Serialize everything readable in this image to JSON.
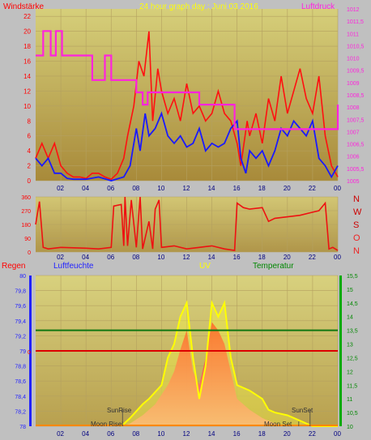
{
  "chart_data": [
    {
      "type": "line",
      "title": "24 hour graph day : Juni 03 2016",
      "left_label": "Windstärke",
      "right_label": "Luftdruck",
      "colors": {
        "wind": "#ff1010",
        "gust": "#1a1aff",
        "pressure": "#ff22dd",
        "left_axis": "#ff0000",
        "right_axis": "#ff22dd",
        "title": "#ffff00"
      },
      "x_ticks": [
        "02",
        "04",
        "06",
        "08",
        "10",
        "12",
        "14",
        "16",
        "18",
        "20",
        "22",
        "00"
      ],
      "y_left_ticks": [
        "0",
        "2",
        "4",
        "6",
        "8",
        "10",
        "12",
        "14",
        "16",
        "18",
        "20",
        "22"
      ],
      "y_left_range": [
        0,
        23
      ],
      "y_right_ticks": [
        "1005",
        "1005,5",
        "1006",
        "1006,5",
        "1007",
        "1007,5",
        "1008",
        "1008,5",
        "1009",
        "1009,5",
        "1010",
        "1010,5",
        "1011",
        "1011,5",
        "1012"
      ],
      "y_right_range": [
        1005,
        1012
      ],
      "series": [
        {
          "values": [
            [
              0,
              3
            ],
            [
              0.5,
              5
            ],
            [
              1,
              3
            ],
            [
              1.5,
              5
            ],
            [
              2,
              2
            ],
            [
              2.5,
              1
            ],
            [
              3,
              0.5
            ],
            [
              3.5,
              0.5
            ],
            [
              4,
              0.3
            ],
            [
              4.5,
              1
            ],
            [
              5,
              1
            ],
            [
              5.5,
              0.5
            ],
            [
              6,
              0.2
            ],
            [
              6.5,
              1
            ],
            [
              7,
              3
            ],
            [
              7.3,
              6
            ],
            [
              7.8,
              10
            ],
            [
              8.2,
              16
            ],
            [
              8.6,
              14
            ],
            [
              9,
              20
            ],
            [
              9.3,
              8
            ],
            [
              9.7,
              15
            ],
            [
              10,
              12
            ],
            [
              10.5,
              9
            ],
            [
              11,
              11
            ],
            [
              11.5,
              8
            ],
            [
              12,
              13
            ],
            [
              12.5,
              9
            ],
            [
              13,
              10
            ],
            [
              13.5,
              8
            ],
            [
              14,
              9
            ],
            [
              14.5,
              12
            ],
            [
              15,
              9
            ],
            [
              15.5,
              8
            ],
            [
              16,
              5
            ],
            [
              16.3,
              2
            ],
            [
              16.8,
              8
            ],
            [
              17,
              6
            ],
            [
              17.5,
              9
            ],
            [
              18,
              5
            ],
            [
              18.5,
              11
            ],
            [
              19,
              8
            ],
            [
              19.5,
              14
            ],
            [
              20,
              9
            ],
            [
              20.5,
              12
            ],
            [
              21,
              15
            ],
            [
              21.5,
              11
            ],
            [
              22,
              9
            ],
            [
              22.5,
              14
            ],
            [
              23,
              6
            ],
            [
              23.5,
              2
            ],
            [
              24,
              0.5
            ]
          ]
        },
        {
          "values": [
            [
              0,
              3
            ],
            [
              0.5,
              2
            ],
            [
              1,
              3
            ],
            [
              1.5,
              1
            ],
            [
              2,
              1
            ],
            [
              2.5,
              0.3
            ],
            [
              3,
              0.2
            ],
            [
              4,
              0.2
            ],
            [
              5,
              0.5
            ],
            [
              6,
              0
            ],
            [
              7,
              0.5
            ],
            [
              7.5,
              2
            ],
            [
              8,
              7
            ],
            [
              8.3,
              4
            ],
            [
              8.7,
              9
            ],
            [
              9,
              6
            ],
            [
              9.5,
              7
            ],
            [
              10,
              9
            ],
            [
              10.5,
              6
            ],
            [
              11,
              5
            ],
            [
              11.5,
              6
            ],
            [
              12,
              4.5
            ],
            [
              12.5,
              5
            ],
            [
              13,
              7
            ],
            [
              13.5,
              4
            ],
            [
              14,
              5
            ],
            [
              14.5,
              4.5
            ],
            [
              15,
              5
            ],
            [
              15.5,
              7
            ],
            [
              16,
              8
            ],
            [
              16.3,
              3
            ],
            [
              16.7,
              1
            ],
            [
              17,
              4
            ],
            [
              17.5,
              3
            ],
            [
              18,
              4
            ],
            [
              18.5,
              2
            ],
            [
              19,
              4
            ],
            [
              19.5,
              7
            ],
            [
              20,
              6
            ],
            [
              20.5,
              8
            ],
            [
              21,
              7
            ],
            [
              21.5,
              6
            ],
            [
              22,
              8
            ],
            [
              22.5,
              3
            ],
            [
              23,
              2
            ],
            [
              23.5,
              0.5
            ],
            [
              24,
              2
            ]
          ]
        },
        {
          "values": [
            [
              0,
              1010.1
            ],
            [
              0.6,
              1010.1
            ],
            [
              0.6,
              1011.1
            ],
            [
              1.2,
              1011.1
            ],
            [
              1.2,
              1010.1
            ],
            [
              1.6,
              1010.1
            ],
            [
              1.6,
              1011.1
            ],
            [
              2.1,
              1011.1
            ],
            [
              2.1,
              1010.1
            ],
            [
              4.5,
              1010.1
            ],
            [
              4.5,
              1009.1
            ],
            [
              5.5,
              1009.1
            ],
            [
              5.5,
              1010.1
            ],
            [
              6,
              1010.1
            ],
            [
              6,
              1009.1
            ],
            [
              8,
              1009.1
            ],
            [
              8,
              1008.6
            ],
            [
              8.5,
              1008.6
            ],
            [
              8.5,
              1008.1
            ],
            [
              8.9,
              1008.1
            ],
            [
              8.9,
              1008.6
            ],
            [
              13,
              1008.6
            ],
            [
              13,
              1008.1
            ],
            [
              15.8,
              1008.1
            ],
            [
              15.8,
              1007.1
            ],
            [
              24,
              1007.1
            ],
            [
              24,
              1008.1
            ],
            [
              24.5,
              1008.1
            ]
          ]
        }
      ]
    },
    {
      "type": "line",
      "right_label_letters": [
        "N",
        "W",
        "S",
        "O",
        "N"
      ],
      "letter_colors": [
        "#cc0000",
        "#cc0000",
        "#cc0000",
        "#ee2222",
        "#ee2222"
      ],
      "x_ticks": [
        "02",
        "04",
        "06",
        "08",
        "10",
        "12",
        "14",
        "16",
        "18",
        "20",
        "22",
        "00"
      ],
      "y_ticks": [
        "0",
        "90",
        "180",
        "270",
        "360"
      ],
      "y_range": [
        0,
        360
      ],
      "series": [
        {
          "values": [
            [
              0,
              180
            ],
            [
              0.3,
              330
            ],
            [
              0.6,
              30
            ],
            [
              1,
              20
            ],
            [
              2,
              30
            ],
            [
              4,
              25
            ],
            [
              5,
              20
            ],
            [
              6,
              30
            ],
            [
              6.2,
              300
            ],
            [
              6.8,
              310
            ],
            [
              7,
              40
            ],
            [
              7.1,
              360
            ],
            [
              7.3,
              40
            ],
            [
              7.6,
              340
            ],
            [
              8,
              30
            ],
            [
              8.3,
              360
            ],
            [
              8.5,
              20
            ],
            [
              9,
              200
            ],
            [
              9.3,
              20
            ],
            [
              9.5,
              280
            ],
            [
              9.8,
              340
            ],
            [
              10,
              30
            ],
            [
              11,
              40
            ],
            [
              12,
              20
            ],
            [
              13,
              30
            ],
            [
              14,
              40
            ],
            [
              15,
              20
            ],
            [
              15.8,
              10
            ],
            [
              16,
              320
            ],
            [
              16.5,
              290
            ],
            [
              17,
              280
            ],
            [
              18,
              290
            ],
            [
              18.5,
              200
            ],
            [
              19,
              220
            ],
            [
              20,
              230
            ],
            [
              21,
              240
            ],
            [
              22,
              260
            ],
            [
              22.5,
              270
            ],
            [
              23,
              320
            ],
            [
              23.3,
              20
            ],
            [
              23.6,
              30
            ],
            [
              24,
              10
            ]
          ]
        }
      ]
    },
    {
      "type": "area",
      "labels": {
        "rain": "Regen",
        "humidity": "Luftfeuchte",
        "uv": "UV",
        "temperature": "Temperatur",
        "sunrise": "SunRise",
        "moonrise": "Moon Rise",
        "sunset": "SunSet",
        "moonset": "Moon Set",
        "rain_line_value": "0"
      },
      "label_colors": {
        "rain": "#ff0000",
        "humidity": "#2222ff",
        "uv": "#ffff00",
        "temperature": "#008800"
      },
      "x_ticks": [
        "02",
        "04",
        "06",
        "08",
        "10",
        "12",
        "14",
        "16",
        "18",
        "20",
        "22",
        "00"
      ],
      "y_left_ticks": [
        "78",
        "78,2",
        "78,4",
        "78,6",
        "78,8",
        "79",
        "79,2",
        "79,4",
        "79,6",
        "79,8",
        "80"
      ],
      "y_left_range": [
        78,
        80
      ],
      "y_right_ticks": [
        "10",
        "10,5",
        "11",
        "11,5",
        "12",
        "12,5",
        "13",
        "13,5",
        "14",
        "14,5",
        "15",
        "15,5"
      ],
      "y_right_range": [
        10,
        15.5
      ],
      "horizontal_lines": {
        "humidity_const": 79.0,
        "temperature_const": 13.5
      },
      "uv_envelope": [
        [
          6.8,
          10
        ],
        [
          7.5,
          10.3
        ],
        [
          8.5,
          10.8
        ],
        [
          9,
          11
        ],
        [
          10,
          11.5
        ],
        [
          10.5,
          12.5
        ],
        [
          11,
          13
        ],
        [
          11.5,
          14
        ],
        [
          12,
          14.5
        ],
        [
          12.5,
          12.5
        ],
        [
          13,
          11
        ],
        [
          13.5,
          12.2
        ],
        [
          14,
          14.5
        ],
        [
          14.5,
          14
        ],
        [
          15,
          14.5
        ],
        [
          15.5,
          12.5
        ],
        [
          16,
          11.5
        ],
        [
          17,
          11.3
        ],
        [
          18,
          11
        ],
        [
          18.5,
          10.6
        ],
        [
          19,
          10.5
        ],
        [
          20,
          10.4
        ],
        [
          21,
          10.2
        ],
        [
          22,
          10
        ],
        [
          24,
          10
        ]
      ],
      "radiation_fill": [
        [
          6.8,
          10
        ],
        [
          7.5,
          10.1
        ],
        [
          8.5,
          10.4
        ],
        [
          9.5,
          10.8
        ],
        [
          10.5,
          11.5
        ],
        [
          11,
          12
        ],
        [
          11.5,
          12.8
        ],
        [
          12,
          13.5
        ],
        [
          12.5,
          12
        ],
        [
          13,
          11.5
        ],
        [
          13.5,
          12.5
        ],
        [
          14,
          13.8
        ],
        [
          14.5,
          13.5
        ],
        [
          15,
          13
        ],
        [
          15.5,
          12
        ],
        [
          16,
          11
        ],
        [
          17,
          10.6
        ],
        [
          18,
          10.3
        ],
        [
          19,
          10.1
        ],
        [
          20,
          10
        ],
        [
          24,
          10
        ]
      ]
    }
  ]
}
